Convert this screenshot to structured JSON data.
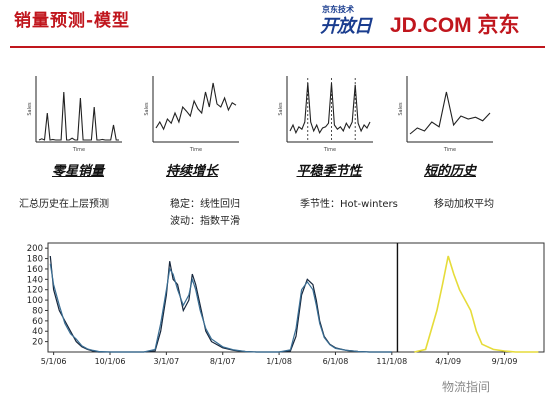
{
  "header": {
    "title": "销量预测-模型",
    "brand_small_top": "京东技术",
    "brand_small_main": "开放日",
    "brand_main": "JD.COM 京东"
  },
  "colors": {
    "accent_red": "#c0161d",
    "brand_blue": "#1a3d8f",
    "series_dark": "#16263c",
    "series_blue": "#3a6e94",
    "series_yellow": "#e6dc3a"
  },
  "models": [
    {
      "label": "零星销量",
      "description_lines": [
        "汇总历史在上层预测"
      ]
    },
    {
      "label": "持续增长",
      "description_lines": [
        "稳定：线性回归",
        "波动：指数平滑"
      ]
    },
    {
      "label": "平稳季节性",
      "description_lines": [
        "季节性：Hot-winters"
      ]
    },
    {
      "label": "短的历史",
      "description_lines": [
        "移动加权平均"
      ]
    }
  ],
  "watermark": "物流指间",
  "chart_data": [
    {
      "type": "line",
      "title": "",
      "xlabel": "Time",
      "ylabel": "Sales",
      "x": [
        1,
        2,
        3,
        4,
        5,
        6,
        7,
        8,
        9,
        10,
        11,
        12,
        13,
        14,
        15,
        16,
        17,
        18,
        19,
        20,
        21,
        22,
        23,
        24,
        25,
        26,
        27,
        28,
        29,
        30
      ],
      "series": [
        {
          "values": [
            0,
            2,
            0,
            45,
            0,
            1,
            0,
            0,
            0,
            80,
            0,
            0,
            3,
            0,
            0,
            70,
            0,
            0,
            0,
            0,
            55,
            0,
            0,
            1,
            0,
            0,
            0,
            25,
            0,
            0
          ]
        }
      ]
    },
    {
      "type": "line",
      "title": "",
      "xlabel": "Time",
      "ylabel": "Sales",
      "x": [
        1,
        2,
        3,
        4,
        5,
        6,
        7,
        8,
        9,
        10,
        11,
        12,
        13,
        14,
        15,
        16,
        17,
        18,
        19,
        20,
        21,
        22
      ],
      "series": [
        {
          "values": [
            20,
            30,
            18,
            35,
            28,
            45,
            30,
            55,
            48,
            40,
            65,
            52,
            45,
            80,
            55,
            95,
            60,
            55,
            70,
            50,
            62,
            58
          ]
        }
      ]
    },
    {
      "type": "line",
      "title": "",
      "xlabel": "Time",
      "ylabel": "Sales",
      "x": [
        1,
        2,
        3,
        4,
        5,
        6,
        7,
        8,
        9,
        10,
        11,
        12,
        13,
        14,
        15,
        16,
        17,
        18,
        19,
        20,
        21,
        22,
        23,
        24,
        25,
        26,
        27,
        28
      ],
      "series": [
        {
          "values": [
            15,
            25,
            12,
            22,
            18,
            30,
            95,
            30,
            15,
            25,
            12,
            20,
            22,
            28,
            95,
            25,
            18,
            22,
            15,
            28,
            20,
            30,
            92,
            28,
            15,
            25,
            20,
            30
          ]
        }
      ]
    },
    {
      "type": "line",
      "title": "",
      "xlabel": "Time",
      "ylabel": "Sales",
      "x": [
        1,
        2,
        3,
        4,
        5,
        6,
        7,
        8,
        9,
        10,
        11,
        12
      ],
      "series": [
        {
          "values": [
            10,
            20,
            15,
            30,
            22,
            80,
            25,
            40,
            35,
            38,
            32,
            45
          ]
        }
      ]
    },
    {
      "type": "line",
      "title": "",
      "xlabel": "",
      "ylabel": "",
      "ylim": [
        0,
        210
      ],
      "yticks": [
        20,
        40,
        60,
        80,
        100,
        120,
        140,
        160,
        180,
        200
      ],
      "xtick_labels": [
        "5/1/06",
        "10/1/06",
        "3/1/07",
        "8/1/07",
        "1/1/08",
        "6/1/08",
        "11/1/08",
        "4/1/09",
        "9/1/09"
      ],
      "xtick_positions": [
        0,
        5,
        10,
        15,
        20,
        25,
        30,
        35,
        40
      ],
      "divider_x": 30.5,
      "series": [
        {
          "name": "",
          "color": "#16263c",
          "x": [
            -0.3,
            0,
            0.5,
            1,
            1.5,
            2,
            2.5,
            3,
            3.5,
            4,
            5,
            6,
            7,
            8,
            9,
            9.5,
            10,
            10.3,
            10.6,
            11,
            11.5,
            12,
            12.3,
            12.6,
            13,
            13.5,
            14,
            15,
            16,
            17,
            18,
            19,
            20,
            21,
            21.5,
            22,
            22.5,
            23,
            23.3,
            23.6,
            24,
            24.5,
            25,
            26,
            27,
            28,
            29,
            30
          ],
          "values": [
            185,
            120,
            80,
            60,
            40,
            20,
            10,
            5,
            2,
            0,
            0,
            0,
            0,
            0,
            2,
            40,
            110,
            175,
            140,
            130,
            80,
            100,
            150,
            130,
            90,
            40,
            20,
            8,
            3,
            1,
            0,
            0,
            0,
            2,
            30,
            110,
            140,
            130,
            100,
            60,
            30,
            15,
            8,
            3,
            1,
            0,
            0,
            0
          ]
        },
        {
          "name": "",
          "color": "#3a6e94",
          "x": [
            -0.3,
            0,
            0.5,
            1,
            1.5,
            2,
            2.5,
            3,
            3.5,
            4,
            5,
            6,
            7,
            8,
            9,
            9.5,
            10,
            10.3,
            10.6,
            11,
            11.5,
            12,
            12.3,
            12.6,
            13,
            13.5,
            14,
            15,
            16,
            17,
            18,
            19,
            20,
            21,
            21.5,
            22,
            22.5,
            23,
            23.3,
            23.6,
            24,
            24.5,
            25,
            26,
            27,
            28,
            29,
            30
          ],
          "values": [
            170,
            130,
            90,
            55,
            35,
            25,
            12,
            6,
            3,
            1,
            0,
            0,
            0,
            0,
            5,
            55,
            120,
            160,
            150,
            120,
            90,
            110,
            140,
            120,
            80,
            45,
            25,
            10,
            4,
            1,
            0,
            0,
            0,
            4,
            45,
            120,
            135,
            120,
            90,
            55,
            28,
            14,
            7,
            3,
            1,
            0,
            0,
            0
          ]
        },
        {
          "name": "",
          "color": "#e6dc3a",
          "x": [
            32,
            33,
            34,
            34.5,
            35,
            35.5,
            36,
            36.5,
            37,
            37.5,
            38,
            39,
            40,
            41,
            42,
            43
          ],
          "values": [
            0,
            5,
            80,
            130,
            185,
            150,
            120,
            100,
            80,
            40,
            15,
            5,
            2,
            0,
            0,
            0
          ]
        }
      ]
    }
  ]
}
